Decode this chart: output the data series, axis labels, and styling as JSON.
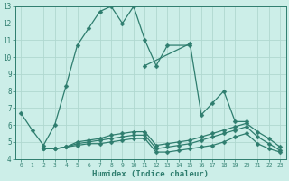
{
  "xlabel": "Humidex (Indice chaleur)",
  "xlim": [
    -0.5,
    23.5
  ],
  "ylim": [
    4,
    13
  ],
  "bg_color": "#cceee8",
  "grid_color": "#b0d8d0",
  "line_color": "#2e7d6e",
  "lines": [
    {
      "x": [
        0,
        1,
        2,
        3,
        4,
        5,
        6,
        7,
        8,
        9,
        10,
        11,
        12,
        13,
        15
      ],
      "y": [
        6.7,
        5.7,
        4.8,
        6.0,
        8.3,
        10.7,
        11.7,
        12.7,
        13.0,
        12.0,
        13.0,
        11.0,
        9.5,
        10.7,
        10.7
      ]
    },
    {
      "x": [
        11,
        15,
        16,
        17,
        18,
        19,
        20
      ],
      "y": [
        9.5,
        10.8,
        6.6,
        7.3,
        8.0,
        6.2,
        6.2
      ]
    },
    {
      "x": [
        2,
        3,
        4,
        5,
        6,
        7,
        8,
        9,
        10,
        11,
        12,
        13,
        14,
        15,
        16,
        17,
        18,
        19,
        20,
        21,
        22,
        23
      ],
      "y": [
        4.6,
        4.6,
        4.7,
        4.8,
        4.9,
        4.9,
        5.0,
        5.1,
        5.2,
        5.2,
        4.4,
        4.4,
        4.5,
        4.6,
        4.7,
        4.8,
        5.0,
        5.3,
        5.5,
        4.9,
        4.6,
        4.4
      ]
    },
    {
      "x": [
        2,
        3,
        4,
        5,
        6,
        7,
        8,
        9,
        10,
        11,
        12,
        13,
        14,
        15,
        16,
        17,
        18,
        19,
        20,
        21,
        22,
        23
      ],
      "y": [
        4.6,
        4.6,
        4.7,
        4.9,
        5.0,
        5.1,
        5.2,
        5.3,
        5.4,
        5.4,
        4.6,
        4.7,
        4.8,
        4.9,
        5.1,
        5.3,
        5.5,
        5.7,
        5.9,
        5.3,
        4.9,
        4.5
      ]
    },
    {
      "x": [
        2,
        3,
        4,
        5,
        6,
        7,
        8,
        9,
        10,
        11,
        12,
        13,
        14,
        15,
        16,
        17,
        18,
        19,
        20,
        21,
        22,
        23
      ],
      "y": [
        4.6,
        4.6,
        4.7,
        5.0,
        5.1,
        5.2,
        5.4,
        5.5,
        5.6,
        5.6,
        4.8,
        4.9,
        5.0,
        5.1,
        5.3,
        5.5,
        5.7,
        5.9,
        6.1,
        5.6,
        5.2,
        4.7
      ]
    }
  ],
  "yticks": [
    4,
    5,
    6,
    7,
    8,
    9,
    10,
    11,
    12,
    13
  ],
  "xticks": [
    0,
    1,
    2,
    3,
    4,
    5,
    6,
    7,
    8,
    9,
    10,
    11,
    12,
    13,
    14,
    15,
    16,
    17,
    18,
    19,
    20,
    21,
    22,
    23
  ],
  "markersize": 2.5,
  "linewidth": 0.9
}
